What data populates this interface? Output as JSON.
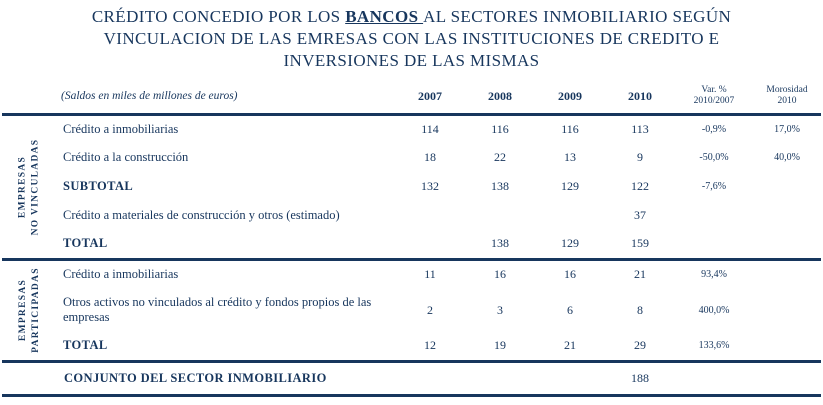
{
  "title": {
    "line1_pre": "CRÉDITO CONCEDIO POR LOS ",
    "line1_emph": "BANCOS ",
    "line1_post": "AL SECTORES INMOBILIARIO SEGÚN",
    "line2": "VINCULACION DE LAS EMRESAS CON LAS INSTITUCIONES DE CREDITO E",
    "line3": "INVERSIONES DE LAS MISMAS"
  },
  "table": {
    "caption": "(Saldos en miles de millones de euros)",
    "year_headers": [
      "2007",
      "2008",
      "2009",
      "2010"
    ],
    "var_header_line1": "Var. %",
    "var_header_line2": "2010/2007",
    "mor_header_line1": "Morosidad",
    "mor_header_line2": "2010",
    "groups": [
      {
        "label_line1": "EMPRESAS",
        "label_line2": "NO VINCULADAS",
        "rows": [
          {
            "label": "Crédito a inmobiliarias",
            "v": [
              "114",
              "116",
              "116",
              "113"
            ],
            "var": "-0,9%",
            "mor": "17,0%"
          },
          {
            "label": "Crédito a la construcción",
            "v": [
              "18",
              "22",
              "13",
              "9"
            ],
            "var": "-50,0%",
            "mor": "40,0%"
          },
          {
            "label": "SUBTOTAL",
            "v": [
              "132",
              "138",
              "129",
              "122"
            ],
            "var": "-7,6%",
            "mor": ""
          },
          {
            "label": "Crédito a materiales de construcción y otros (estimado)",
            "v": [
              "",
              "",
              "",
              "37"
            ],
            "var": "",
            "mor": ""
          },
          {
            "label": "TOTAL",
            "v": [
              "",
              "138",
              "129",
              "159"
            ],
            "var": "",
            "mor": ""
          }
        ]
      },
      {
        "label_line1": "EMPRESAS",
        "label_line2": "PARTICIPADAS",
        "rows": [
          {
            "label": "Crédito a inmobiliarias",
            "v": [
              "11",
              "16",
              "16",
              "21"
            ],
            "var": "93,4%",
            "mor": ""
          },
          {
            "label": "Otros activos no vinculados al crédito y fondos propios de las empresas",
            "v": [
              "2",
              "3",
              "6",
              "8"
            ],
            "var": "400,0%",
            "mor": ""
          },
          {
            "label": "TOTAL",
            "v": [
              "12",
              "19",
              "21",
              "29"
            ],
            "var": "133,6%",
            "mor": ""
          }
        ]
      }
    ],
    "footer": {
      "label": "CONJUNTO DEL SECTOR INMOBILIARIO",
      "v": [
        "",
        "",
        "",
        "188"
      ],
      "var": "",
      "mor": ""
    }
  }
}
